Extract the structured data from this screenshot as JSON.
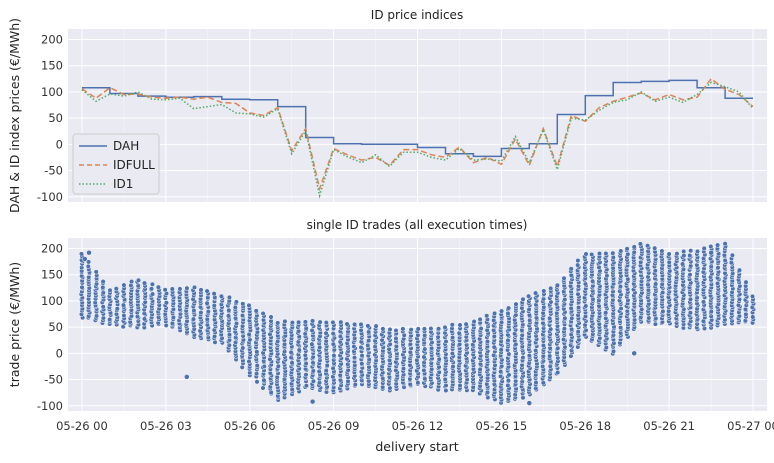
{
  "colors": {
    "panel_bg": "#eaeaf2",
    "grid": "#ffffff",
    "dah": "#4c72b0",
    "idfull": "#dd8452",
    "id1": "#55a868",
    "dot": "#4c72b0"
  },
  "chart_data": [
    {
      "type": "line",
      "title": "ID price indices",
      "xlabel": "",
      "ylabel": "DAH & ID index prices (€/MWh)",
      "xlim": [
        -0.5,
        24.5
      ],
      "ylim": [
        -110,
        220
      ],
      "yticks": [
        -100,
        -50,
        0,
        50,
        100,
        150,
        200
      ],
      "xticks": [
        0,
        3,
        6,
        9,
        12,
        15,
        18,
        21,
        24
      ],
      "legend": "lower-left",
      "series": [
        {
          "name": "DAH",
          "style": "solid",
          "color": "#4c72b0",
          "x": [
            0,
            1,
            1,
            2,
            2,
            3,
            3,
            4,
            4,
            5,
            5,
            6,
            6,
            7,
            7,
            8,
            8,
            9,
            9,
            10,
            10,
            11,
            11,
            12,
            12,
            13,
            13,
            14,
            14,
            15,
            15,
            16,
            16,
            17,
            17,
            18,
            18,
            19,
            19,
            20,
            20,
            21,
            21,
            22,
            22,
            23,
            23,
            24
          ],
          "y": [
            108,
            108,
            97,
            97,
            92,
            92,
            90,
            90,
            91,
            91,
            86,
            86,
            85,
            85,
            72,
            72,
            13,
            13,
            1,
            1,
            0,
            0,
            0,
            0,
            -6,
            -6,
            -18,
            -18,
            -23,
            -23,
            -8,
            -8,
            1,
            1,
            57,
            57,
            93,
            93,
            118,
            118,
            120,
            120,
            122,
            122,
            108,
            108,
            88,
            88
          ]
        },
        {
          "name": "IDFULL",
          "style": "dashed",
          "color": "#dd8452",
          "x": [
            0,
            0.5,
            1,
            1.5,
            2,
            2.5,
            3,
            3.5,
            4,
            4.5,
            5,
            5.5,
            6,
            6.5,
            7,
            7.5,
            8,
            8.5,
            9,
            9.5,
            10,
            10.5,
            11,
            11.5,
            12,
            12.5,
            13,
            13.5,
            14,
            14.5,
            15,
            15.5,
            16,
            16.5,
            17,
            17.5,
            18,
            18.5,
            19,
            19.5,
            20,
            20.5,
            21,
            21.5,
            22,
            22.5,
            23,
            23.5,
            24
          ],
          "y": [
            106,
            88,
            108,
            95,
            96,
            90,
            88,
            90,
            86,
            90,
            80,
            78,
            60,
            55,
            70,
            -12,
            30,
            -85,
            -8,
            -20,
            -30,
            -25,
            -40,
            -10,
            -10,
            -20,
            -25,
            -5,
            -35,
            -25,
            -38,
            10,
            -40,
            30,
            -42,
            55,
            44,
            70,
            82,
            90,
            98,
            85,
            95,
            85,
            90,
            125,
            105,
            95,
            72
          ]
        },
        {
          "name": "ID1",
          "style": "dotted",
          "color": "#55a868",
          "x": [
            0,
            0.5,
            1,
            1.5,
            2,
            2.5,
            3,
            3.5,
            4,
            4.5,
            5,
            5.5,
            6,
            6.5,
            7,
            7.5,
            8,
            8.5,
            9,
            9.5,
            10,
            10.5,
            11,
            11.5,
            12,
            12.5,
            13,
            13.5,
            14,
            14.5,
            15,
            15.5,
            16,
            16.5,
            17,
            17.5,
            18,
            18.5,
            19,
            19.5,
            20,
            20.5,
            21,
            21.5,
            22,
            22.5,
            23,
            23.5,
            24
          ],
          "y": [
            104,
            82,
            96,
            92,
            100,
            86,
            85,
            88,
            68,
            72,
            76,
            60,
            58,
            52,
            68,
            -18,
            26,
            -98,
            -10,
            -24,
            -35,
            -20,
            -42,
            -15,
            -15,
            -25,
            -30,
            -8,
            -30,
            -28,
            -32,
            15,
            -35,
            28,
            -48,
            50,
            46,
            65,
            80,
            85,
            100,
            82,
            90,
            80,
            95,
            118,
            110,
            100,
            68
          ]
        }
      ]
    },
    {
      "type": "scatter",
      "title": "single ID trades (all execution times)",
      "xlabel": "delivery start",
      "ylabel": "trade price (€/MWh)",
      "xlim": [
        -0.5,
        24.5
      ],
      "ylim": [
        -110,
        220
      ],
      "yticks": [
        -100,
        -50,
        0,
        50,
        100,
        150,
        200
      ],
      "xticks": [
        0,
        3,
        6,
        9,
        12,
        15,
        18,
        21,
        24
      ],
      "xtick_labels": [
        "05-26 00",
        "05-26 03",
        "05-26 06",
        "05-26 09",
        "05-26 12",
        "05-26 15",
        "05-26 18",
        "05-26 21",
        "05-27 00"
      ],
      "columns_interval_h": 0.25,
      "price_bands": {
        "hours": [
          0,
          1,
          2,
          3,
          4,
          5,
          6,
          7,
          8,
          9,
          10,
          11,
          12,
          13,
          14,
          15,
          16,
          17,
          18,
          19,
          20,
          21,
          22,
          23,
          24
        ],
        "low": [
          70,
          55,
          50,
          55,
          30,
          20,
          -40,
          -90,
          -65,
          -75,
          -60,
          -70,
          -60,
          -70,
          -70,
          -95,
          -80,
          -40,
          30,
          0,
          60,
          55,
          45,
          55,
          60
        ],
        "high": [
          190,
          120,
          140,
          120,
          125,
          110,
          90,
          60,
          60,
          60,
          55,
          45,
          45,
          50,
          60,
          80,
          110,
          130,
          190,
          190,
          210,
          190,
          195,
          210,
          110
        ]
      },
      "outliers": [
        {
          "x": 0.1,
          "y": 180
        },
        {
          "x": 0.25,
          "y": 192
        },
        {
          "x": 3.75,
          "y": -45
        },
        {
          "x": 19.75,
          "y": 0
        },
        {
          "x": 16.0,
          "y": -95
        },
        {
          "x": 8.25,
          "y": -92
        },
        {
          "x": 22.5,
          "y": 192
        }
      ]
    }
  ]
}
